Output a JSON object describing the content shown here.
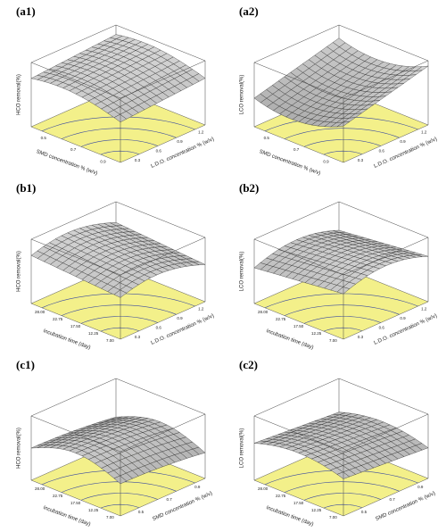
{
  "panels": [
    {
      "label": "(a1)",
      "z_label": "HCO removal(%)",
      "x_label": "SMD concentration % (w/v)",
      "y_label": "L.D.O. concentration % (w/v)",
      "x_ticks": [
        "0.5",
        "0.7",
        "0.9"
      ],
      "y_ticks": [
        "0.3",
        "0.6",
        "0.9",
        "1.2"
      ]
    },
    {
      "label": "(a2)",
      "z_label": "LCO removal(%)",
      "x_label": "SMD concentration % (w/v)",
      "y_label": "L.D.O. concentration % (w/v)",
      "x_ticks": [
        "0.5",
        "0.7",
        "0.9"
      ],
      "y_ticks": [
        "0.3",
        "0.6",
        "0.9",
        "1.2"
      ]
    },
    {
      "label": "(b1)",
      "z_label": "HCO removal(%)",
      "x_label": "Incubation time (day)",
      "y_label": "L.D.O. concentration % (w/v)",
      "x_ticks": [
        "28.00",
        "22.75",
        "17.50",
        "12.25",
        "7.00"
      ],
      "y_ticks": [
        "0.3",
        "0.6",
        "0.9",
        "1.2"
      ]
    },
    {
      "label": "(b2)",
      "z_label": "LCO removal(%)",
      "x_label": "Incubation time (day)",
      "y_label": "L.D.O. concentration % (w/v)",
      "x_ticks": [
        "28.00",
        "22.75",
        "17.50",
        "12.25",
        "7.00"
      ],
      "y_ticks": [
        "0.3",
        "0.6",
        "0.9",
        "1.2"
      ]
    },
    {
      "label": "(c1)",
      "z_label": "HCO removal(%)",
      "x_label": "Incubation time (day)",
      "y_label": "SMD concentration % (w/v)",
      "x_ticks": [
        "28.00",
        "22.75",
        "17.50",
        "12.25",
        "7.00"
      ],
      "y_ticks": [
        "0.5",
        "0.7",
        "0.9"
      ]
    },
    {
      "label": "(c2)",
      "z_label": "LCO removal(%)",
      "x_label": "Incubation time (day)",
      "y_label": "SMD concentration % (w/v)",
      "x_ticks": [
        "28.00",
        "22.75",
        "17.50",
        "12.25",
        "7.00"
      ],
      "y_ticks": [
        "0.5",
        "0.7",
        "0.9"
      ]
    }
  ]
}
